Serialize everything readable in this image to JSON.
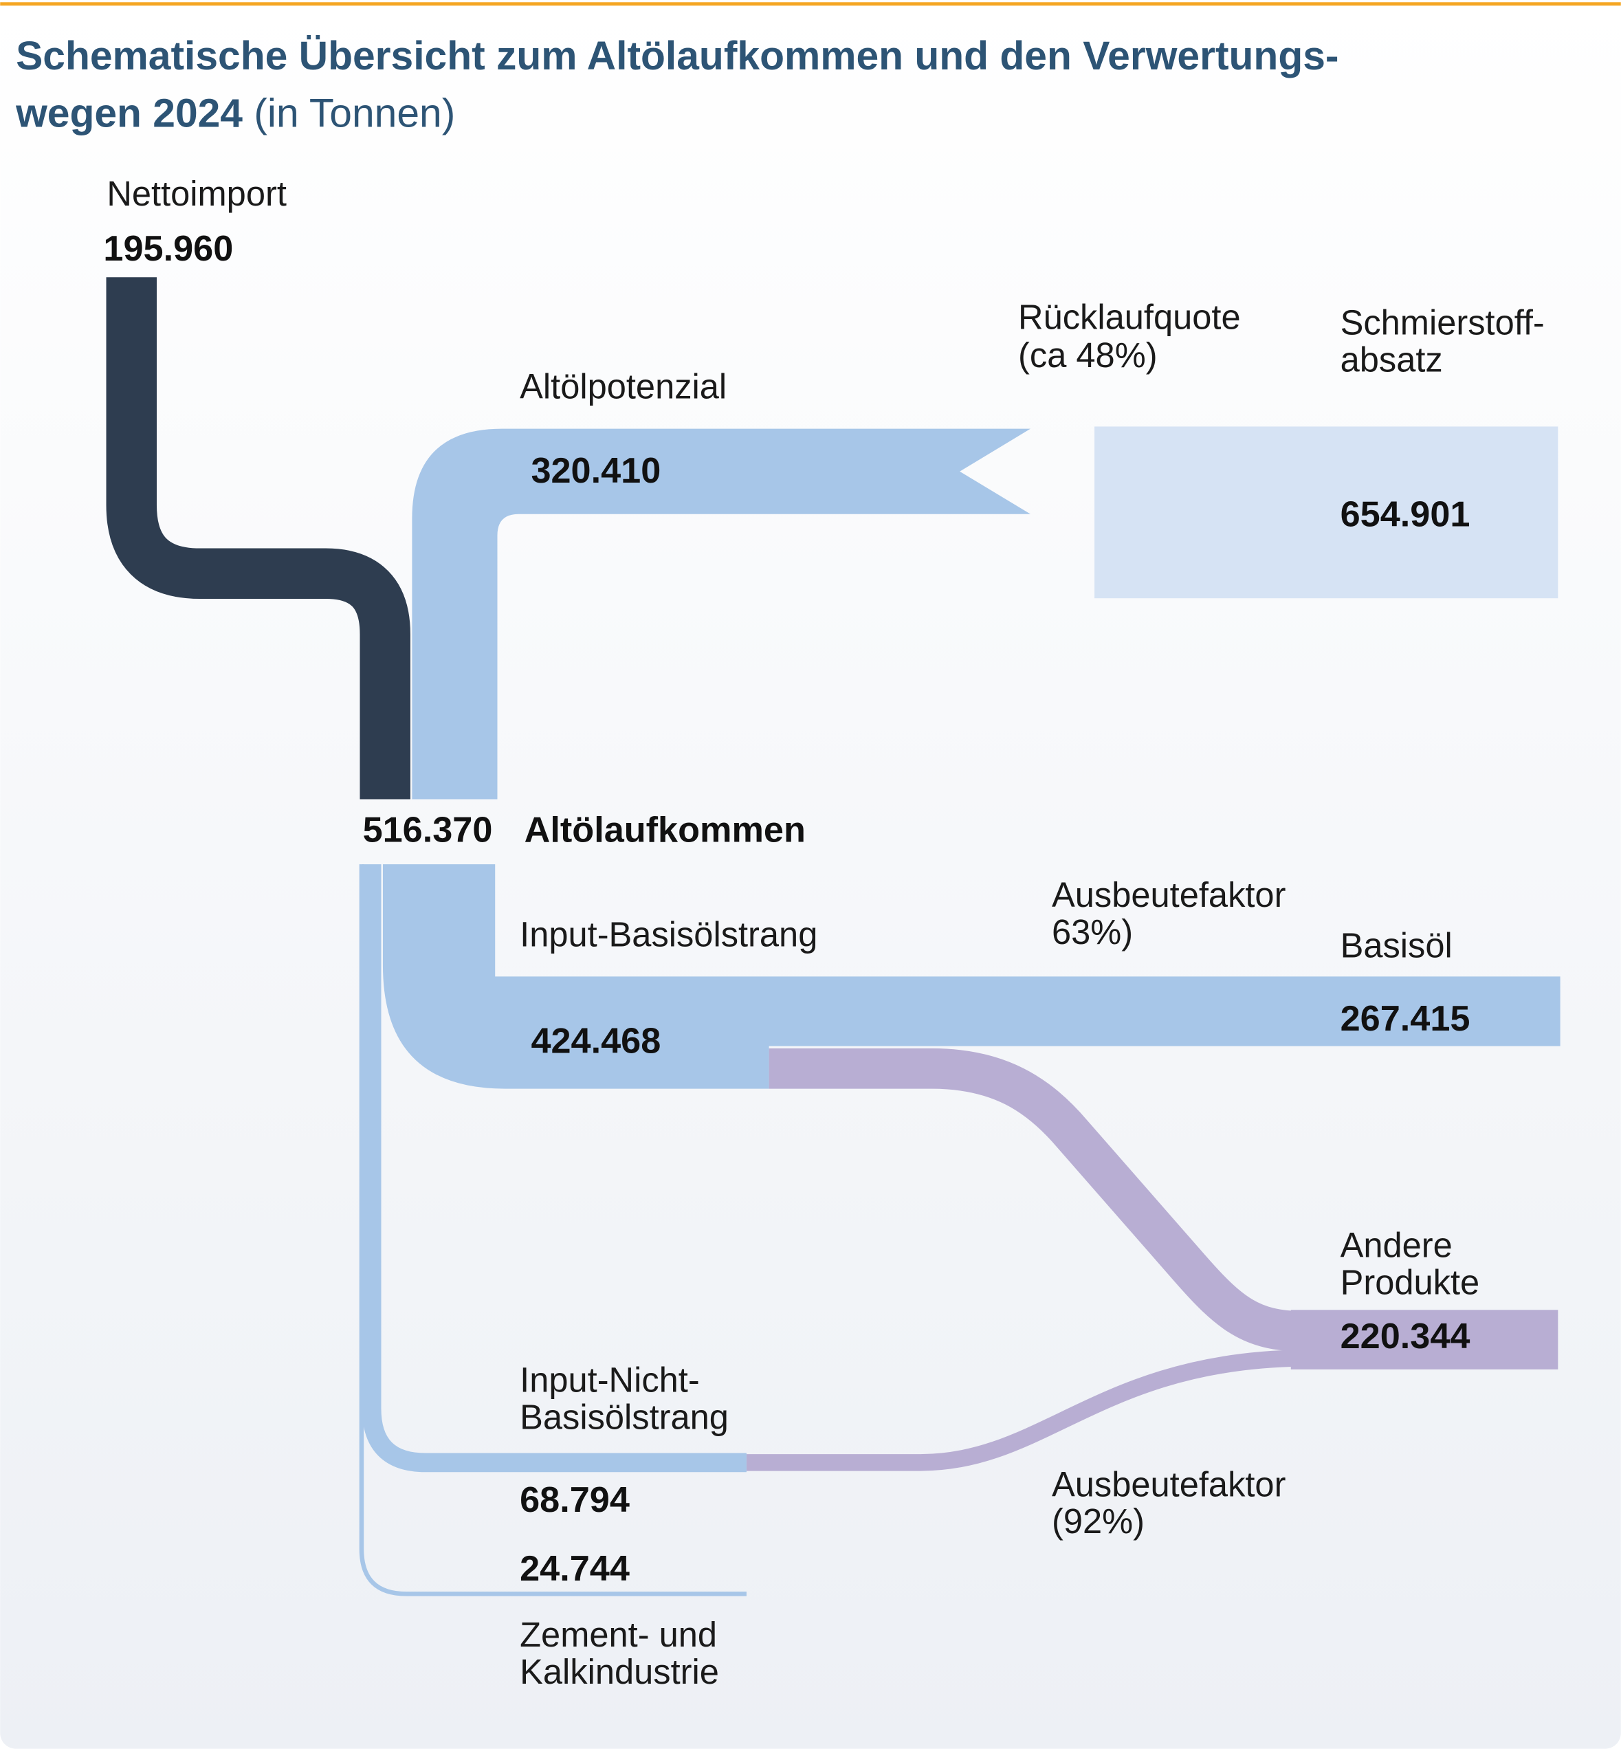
{
  "title": {
    "line1": "Schematische Übersicht zum Altölaufkommen und den Verwertungs-",
    "line2": "wegen 2024",
    "unit": "(in Tonnen)"
  },
  "colors": {
    "accent_line": "#f5a623",
    "title": "#2d5475",
    "nettoimport": "#2e3d50",
    "altoel": "#a7c6e8",
    "schmierstoff": "#d6e3f4",
    "produkte": "#b8aed3"
  },
  "nodes": {
    "nettoimport": {
      "label": "Nettoimport",
      "value": "195.960"
    },
    "altoelpotenzial": {
      "label": "Altölpotenzial",
      "value": "320.410"
    },
    "ruecklaufquote": {
      "line1": "Rücklaufquote",
      "line2": "(ca 48%)"
    },
    "schmierstoffabsatz": {
      "line1": "Schmierstoff-",
      "line2": "absatz",
      "value": "654.901"
    },
    "altoelaufkommen": {
      "label": "Altölaufkommen",
      "value": "516.370"
    },
    "input_basisoel": {
      "label": "Input-Basisölstrang",
      "value": "424.468"
    },
    "ausbeute_63": {
      "line1": "Ausbeutefaktor",
      "line2": "63%)"
    },
    "basisoel": {
      "label": "Basisöl",
      "value": "267.415"
    },
    "andere_produkte": {
      "line1": "Andere",
      "line2": "Produkte",
      "value": "220.344"
    },
    "input_nicht_basisoel": {
      "line1": "Input-Nicht-",
      "line2": "Basisölstrang",
      "value": "68.794"
    },
    "zement": {
      "line1": "Zement- und",
      "line2": "Kalkindustrie",
      "value": "24.744"
    },
    "ausbeute_92": {
      "line1": "Ausbeutefaktor",
      "line2": "(92%)"
    }
  }
}
